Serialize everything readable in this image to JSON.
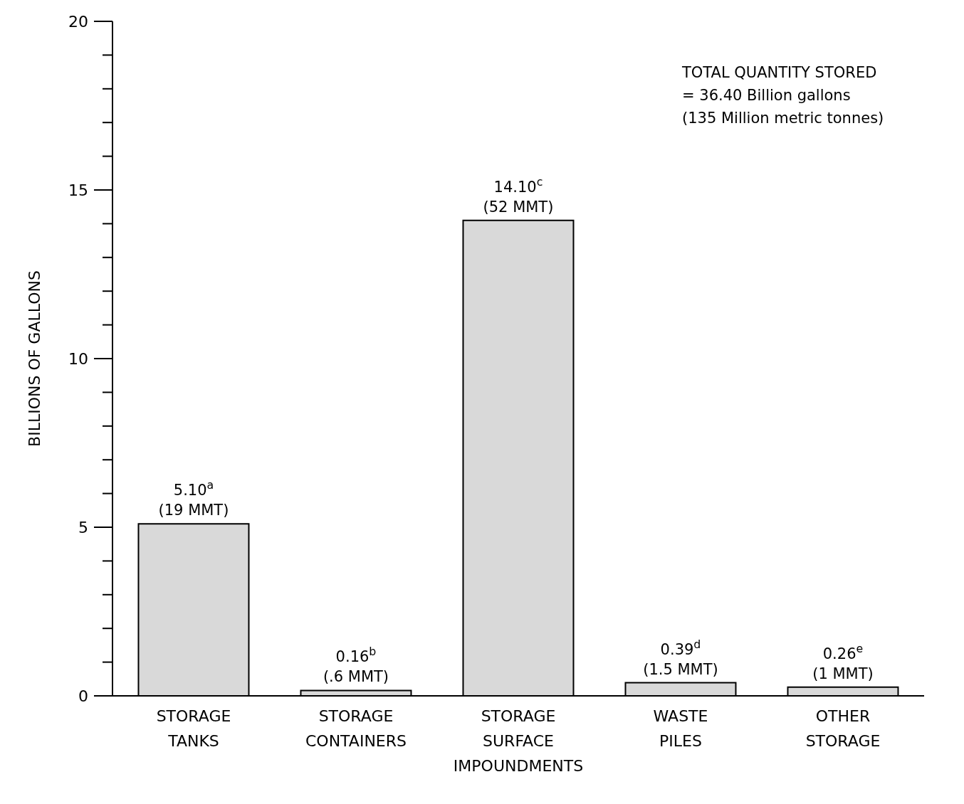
{
  "chart_data": {
    "type": "bar",
    "ylabel": "BILLIONS OF GALLONS",
    "categories": [
      "STORAGE TANKS",
      "STORAGE CONTAINERS",
      "STORAGE SURFACE IMPOUNDMENTS",
      "WASTE PILES",
      "OTHER STORAGE"
    ],
    "values": [
      5.1,
      0.16,
      14.1,
      0.39,
      0.26
    ],
    "value_labels": [
      "5.10$^{a}$ (19 MMT)",
      "0.16$^{b}$ (.6 MMT)",
      "14.10$^{c}$ (52 MMT)",
      "0.39$^{d}$ (1.5 MMT)",
      "0.26$^{e}$ (1 MMT)"
    ],
    "color": "#d9d9d9",
    "ylim": [
      0,
      20
    ],
    "yticks": [
      0,
      {
        "value": 1,
        "label": null
      },
      {
        "value": 2,
        "label": null
      },
      {
        "value": 3,
        "label": null
      },
      {
        "value": 4,
        "label": null
      },
      5,
      {
        "value": 6,
        "label": null
      },
      {
        "value": 7,
        "label": null
      },
      {
        "value": 8,
        "label": null
      },
      {
        "value": 9,
        "label": null
      },
      10,
      {
        "value": 11,
        "label": null
      },
      {
        "value": 12,
        "label": null
      },
      {
        "value": 13,
        "label": null
      },
      {
        "value": 14,
        "label": null
      },
      15,
      {
        "value": 16,
        "label": null
      },
      {
        "value": 17,
        "label": null
      },
      {
        "value": 18,
        "label": null
      },
      {
        "value": 19,
        "label": null
      },
      20
    ],
    "grid": false,
    "annotations": [
      "TOTAL QUANTITY STORED",
      "= 36.40 Billion gallons",
      "(135 Million metric tonnes)"
    ]
  }
}
